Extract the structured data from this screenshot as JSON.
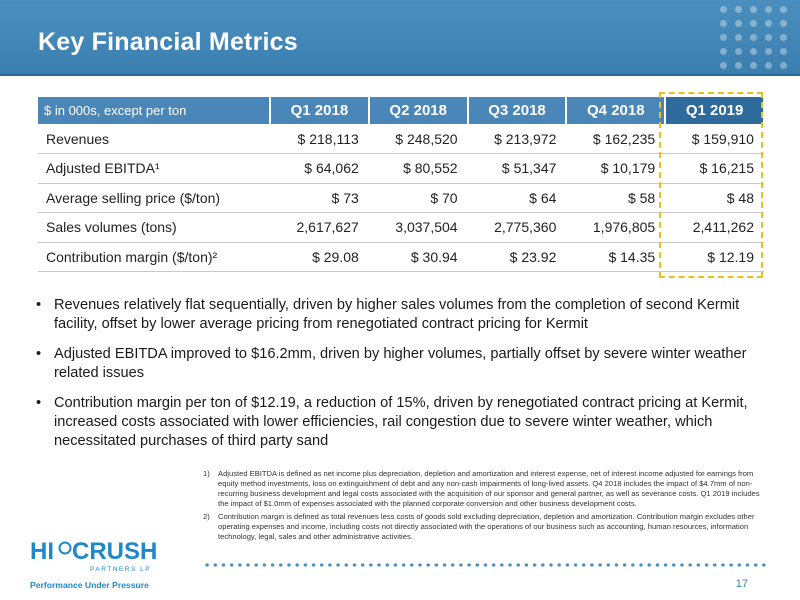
{
  "header": {
    "title": "Key Financial Metrics"
  },
  "table": {
    "unit_label": "$ in 000s, except per ton",
    "columns": [
      "Q1 2018",
      "Q2 2018",
      "Q3 2018",
      "Q4 2018",
      "Q1 2019"
    ],
    "highlighted_column": "Q1 2019",
    "rows": [
      {
        "label": "Revenues",
        "values": [
          "$ 218,113",
          "$ 248,520",
          "$ 213,972",
          "$ 162,235",
          "$ 159,910"
        ]
      },
      {
        "label": "Adjusted EBITDA¹",
        "values": [
          "$ 64,062",
          "$ 80,552",
          "$ 51,347",
          "$ 10,179",
          "$ 16,215"
        ]
      },
      {
        "label": "Average selling price ($/ton)",
        "values": [
          "$ 73",
          "$ 70",
          "$ 64",
          "$ 58",
          "$ 48"
        ]
      },
      {
        "label": "Sales volumes (tons)",
        "values": [
          "2,617,627",
          "3,037,504",
          "2,775,360",
          "1,976,805",
          "2,411,262"
        ]
      },
      {
        "label": "Contribution margin ($/ton)²",
        "values": [
          "$ 29.08",
          "$ 30.94",
          "$ 23.92",
          "$ 14.35",
          "$ 12.19"
        ]
      }
    ]
  },
  "bullets": [
    "Revenues relatively flat sequentially, driven by higher sales volumes from the completion of second Kermit facility, offset by lower average pricing from renegotiated contract pricing for Kermit",
    "Adjusted EBITDA improved to $16.2mm, driven by higher volumes, partially offset by severe winter weather related issues",
    "Contribution margin per ton of $12.19, a reduction of 15%, driven by renegotiated contract pricing at Kermit, increased costs associated with lower efficiencies, rail congestion due to severe winter weather, which necessitated purchases of third party sand"
  ],
  "footnotes": [
    {
      "num": "1)",
      "text": "Adjusted EBITDA is defined as net income plus depreciation, depletion and amortization and interest expense, net of interest income adjusted for earnings from equity method investments, loss on extinguishment of debt and any non-cash impairments of long-lived assets. Q4 2018 includes the impact of $4.7mm of non-recurring business development and legal costs associated with the acquisition of our sponsor and general partner, as well as severance costs. Q1 2019 includes the impact of $1.0mm of expenses associated with the planned corporate conversion and other business development costs."
    },
    {
      "num": "2)",
      "text": "Contribution margin is defined as total revenues less costs of goods sold excluding depreciation, depletion and amortization. Contribution margin excludes other operating expenses and income, including costs not directly associated with the operations of our business such as accounting, human resources, information technology, legal, sales and other administrative activities."
    }
  ],
  "logo": {
    "hi": "HI",
    "crush": "CRUSH",
    "partners": "PARTNERS LP",
    "tagline": "Performance Under Pressure"
  },
  "page_number": "17",
  "colors": {
    "header_blue": "#3b7fb0",
    "table_header": "#4a86b8",
    "highlight_border": "#e8c21c",
    "brand_blue": "#1e88c9"
  }
}
